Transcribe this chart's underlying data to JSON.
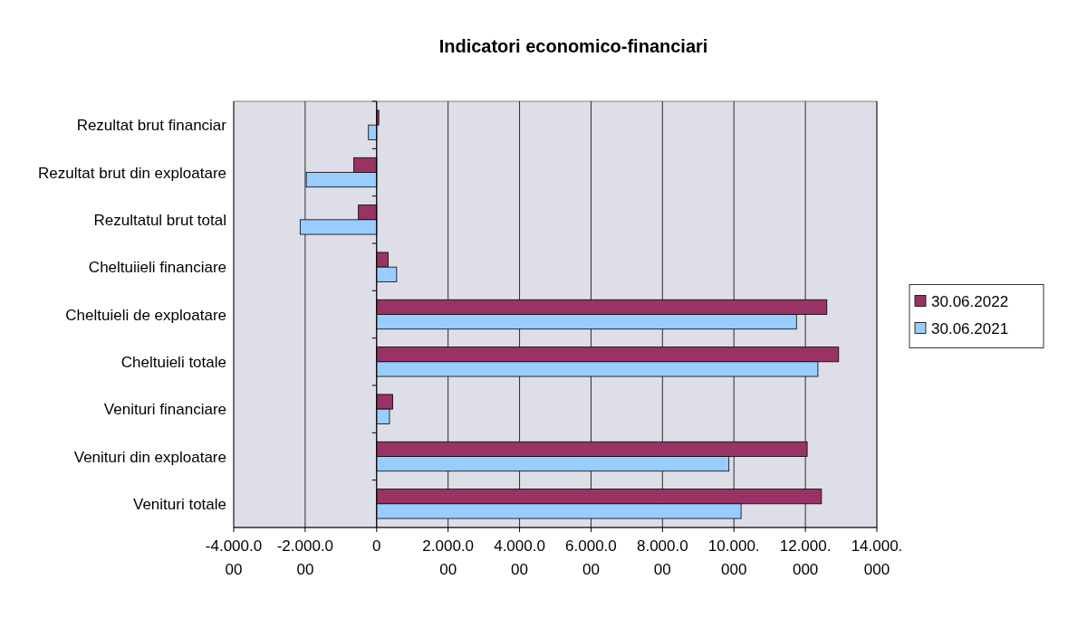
{
  "chart_data": {
    "type": "bar",
    "orientation": "horizontal",
    "title": "Indicatori economico-financiari",
    "categories": [
      "Rezultat brut financiar",
      "Rezultat brut din exploatare",
      "Rezultatul brut  total",
      "Cheltuiieli  financiare",
      "Cheltuieli de exploatare",
      "Cheltuieli totale",
      "Venituri  financiare",
      "Venituri din exploatare",
      "Venituri totale"
    ],
    "series": [
      {
        "name": "30.06.2022",
        "color": "#993366",
        "values": [
          60000,
          -640000,
          -510000,
          320000,
          12600000,
          12930000,
          450000,
          12050000,
          12450000
        ]
      },
      {
        "name": "30.06.2021",
        "color": "#99ccff",
        "values": [
          -230000,
          -1970000,
          -2140000,
          560000,
          11750000,
          12350000,
          360000,
          9860000,
          10200000
        ]
      }
    ],
    "xlim": [
      -4000000,
      14000000
    ],
    "xticks": [
      {
        "value": -4000000,
        "label": "-4.000.000"
      },
      {
        "value": -2000000,
        "label": "-2.000.000"
      },
      0,
      {
        "value": 2000000,
        "label": "2.000.000"
      },
      {
        "value": 4000000,
        "label": "4.000.000"
      },
      {
        "value": 6000000,
        "label": "6.000.000"
      },
      {
        "value": 8000000,
        "label": "8.000.000"
      },
      {
        "value": 10000000,
        "label": "10.000.000"
      },
      {
        "value": 12000000,
        "label": "12.000.000"
      },
      {
        "value": 14000000,
        "label": "14.000.000"
      }
    ],
    "grid": "x",
    "legend": "right"
  }
}
